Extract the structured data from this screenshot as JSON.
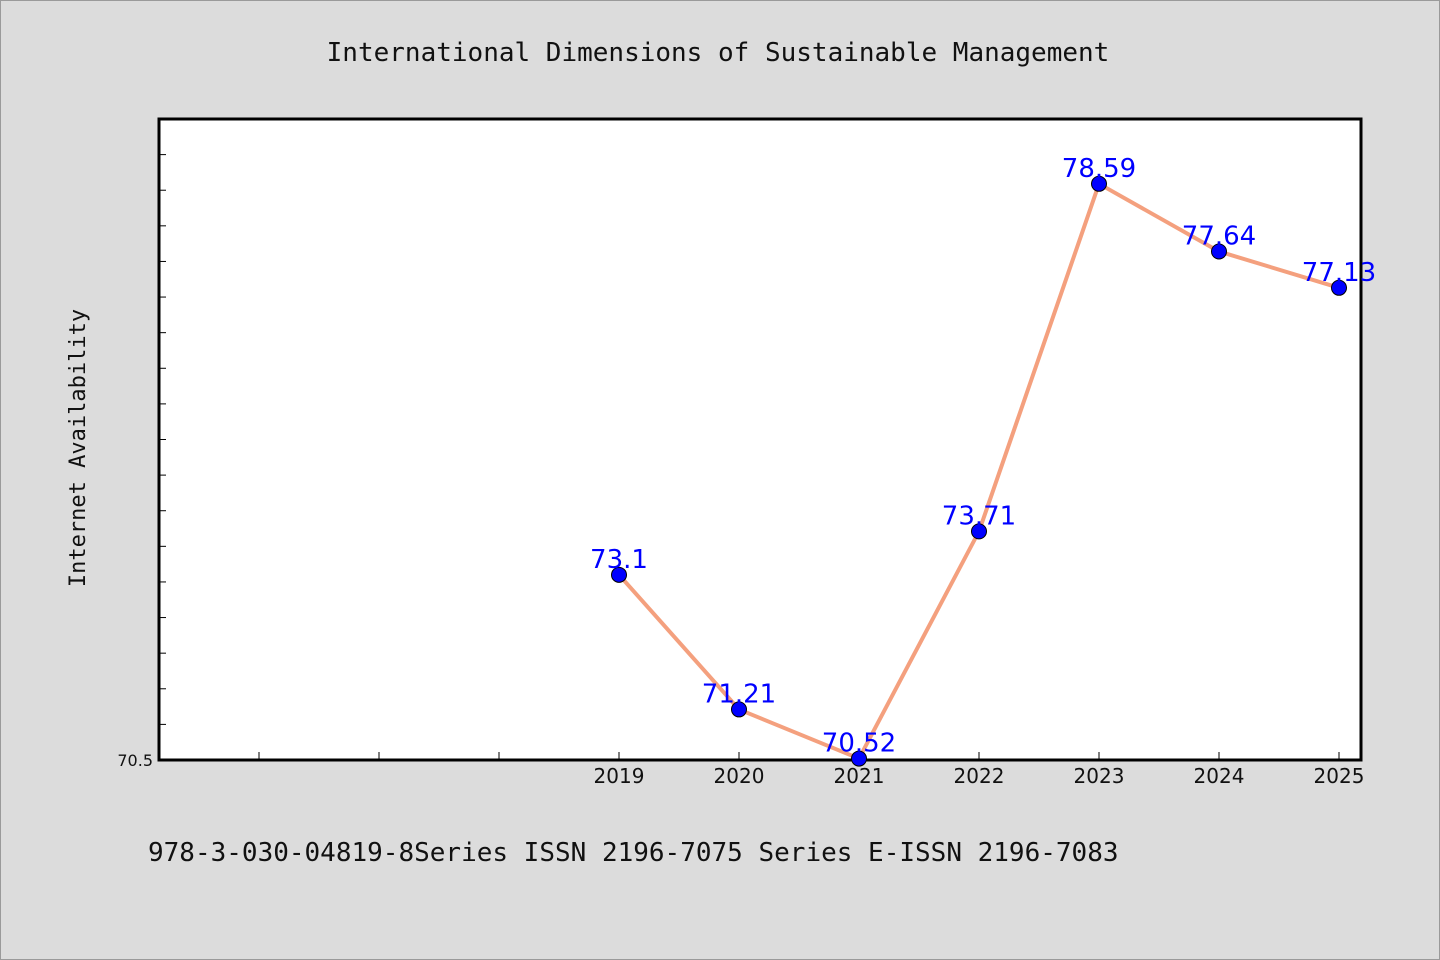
{
  "chart_data": {
    "type": "line",
    "title": "International Dimensions of Sustainable Management",
    "ylabel": "Internet Availability",
    "xlabel": "",
    "x": [
      "2019",
      "2020",
      "2021",
      "2022",
      "2023",
      "2024",
      "2025"
    ],
    "series": [
      {
        "values": [
          73.1,
          71.21,
          70.52,
          73.71,
          78.59,
          77.64,
          77.13
        ],
        "labels": [
          "73.1",
          "71.21",
          "70.52",
          "73.71",
          "78.59",
          "77.64",
          "77.13"
        ],
        "line_color": "#f4a07e",
        "marker_color": "#0000ff"
      }
    ],
    "ytick_labels": [
      "70.5"
    ],
    "ylim": [
      70.5,
      79.5
    ],
    "grid": false,
    "legend": "none"
  },
  "footer": {
    "text": "978-3-030-04819-8Series ISSN 2196-7075 Series E-ISSN 2196-7083"
  },
  "colors": {
    "background": "#dcdcdc",
    "plot_background": "#ffffff",
    "axis": "#000000"
  }
}
